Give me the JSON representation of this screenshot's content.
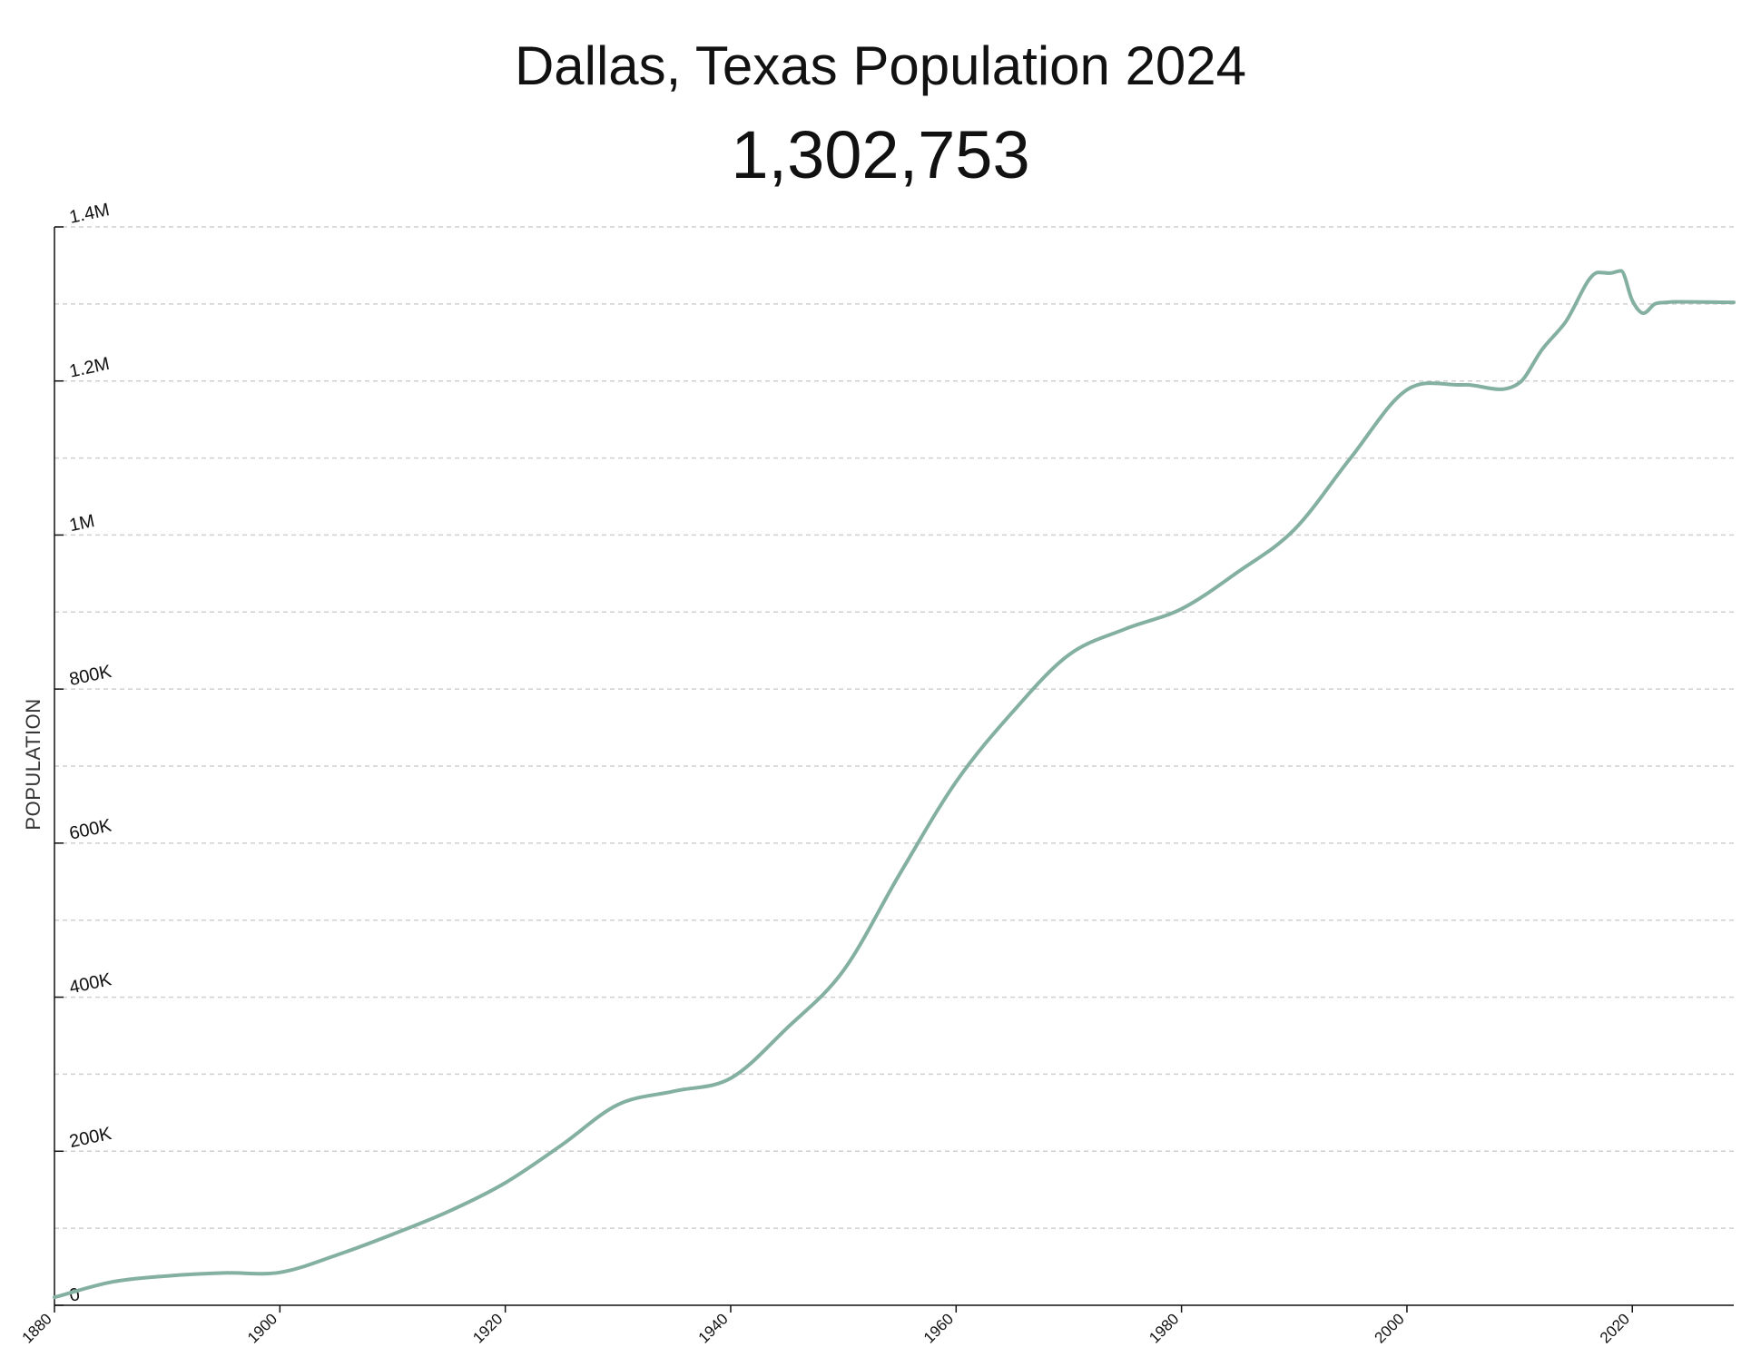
{
  "title": "Dallas, Texas Population 2024",
  "subtitle": "1,302,753",
  "chart_data": {
    "type": "line",
    "ylabel": "POPULATION",
    "xlabel": "",
    "xlim": [
      1880,
      2029
    ],
    "ylim": [
      0,
      1400000
    ],
    "x_ticks": [
      1880,
      1900,
      1920,
      1940,
      1960,
      1980,
      2000,
      2020
    ],
    "x_tick_labels": [
      "1880",
      "1900",
      "1920",
      "1940",
      "1960",
      "1980",
      "2000",
      "2020"
    ],
    "y_ticks": [
      0,
      200000,
      400000,
      600000,
      800000,
      1000000,
      1200000,
      1400000
    ],
    "y_tick_labels": [
      "0",
      "200K",
      "400K",
      "600K",
      "800K",
      "1M",
      "1.2M",
      "1.4M"
    ],
    "grid": true,
    "line_color": "#84b0a2",
    "series": [
      {
        "x": [
          1880,
          1885,
          1890,
          1895,
          1900,
          1905,
          1910,
          1915,
          1920,
          1925,
          1930,
          1935,
          1940,
          1945,
          1950,
          1955,
          1960,
          1965,
          1970,
          1975,
          1980,
          1985,
          1990,
          1995,
          2000,
          2005,
          2010,
          2012,
          2014,
          2017,
          2018,
          2019,
          2020,
          2021,
          2022,
          2023,
          2024,
          2029
        ],
        "y": [
          10358,
          30000,
          38067,
          42000,
          42638,
          65000,
          92104,
          122000,
          158976,
          208000,
          260475,
          278000,
          294734,
          360000,
          434462,
          560000,
          679684,
          770000,
          844401,
          878000,
          904078,
          952000,
          1006877,
          1100000,
          1188580,
          1195000,
          1197816,
          1241000,
          1275000,
          1341000,
          1340000,
          1343000,
          1304379,
          1288000,
          1300000,
          1302000,
          1302753,
          1302000
        ]
      }
    ]
  }
}
